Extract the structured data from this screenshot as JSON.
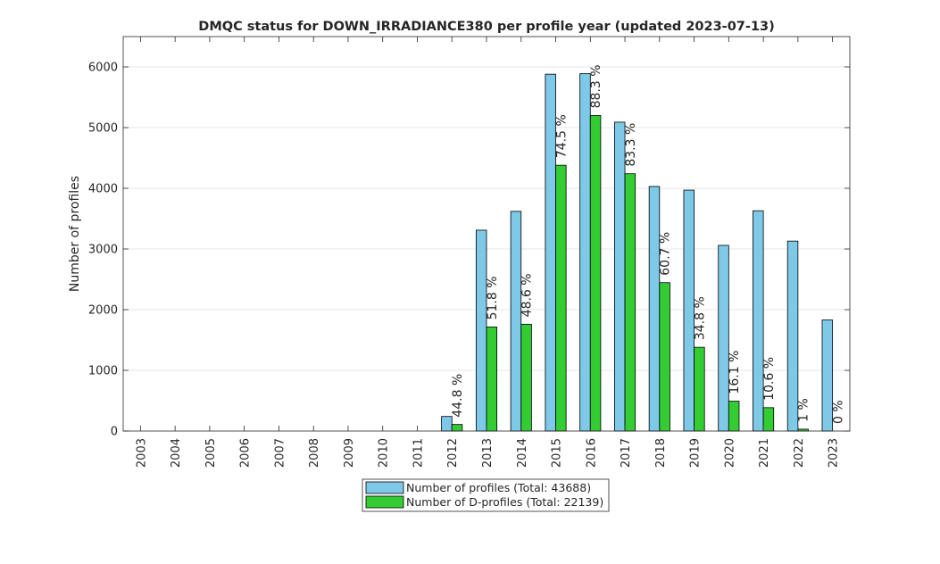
{
  "chart_data": {
    "type": "bar",
    "title": "DMQC status for DOWN_IRRADIANCE380 per profile year (updated 2023-07-13)",
    "xlabel": "",
    "ylabel": "Number of profiles",
    "ylim": [
      0,
      6500
    ],
    "yticks": [
      0,
      1000,
      2000,
      3000,
      4000,
      5000,
      6000
    ],
    "grid": true,
    "legend_position": "bottom-center",
    "categories": [
      "2003",
      "2004",
      "2005",
      "2006",
      "2007",
      "2008",
      "2009",
      "2010",
      "2011",
      "2012",
      "2013",
      "2014",
      "2015",
      "2016",
      "2017",
      "2018",
      "2019",
      "2020",
      "2021",
      "2022",
      "2023"
    ],
    "series": [
      {
        "name": "Number of profiles (Total: 43688)",
        "color": "#7EC8E8",
        "values": [
          0,
          0,
          0,
          0,
          0,
          0,
          0,
          0,
          0,
          240,
          3310,
          3620,
          5880,
          5890,
          5090,
          4030,
          3970,
          3060,
          3630,
          3130,
          1830
        ]
      },
      {
        "name": "Number of D-profiles (Total: 22139)",
        "color": "#33CC33",
        "values": [
          0,
          0,
          0,
          0,
          0,
          0,
          0,
          0,
          0,
          108,
          1715,
          1760,
          4380,
          5200,
          4240,
          2445,
          1380,
          492,
          385,
          31,
          0
        ]
      }
    ],
    "percent_labels": [
      "",
      "",
      "",
      "",
      "",
      "",
      "",
      "",
      "",
      "44.8 %",
      "51.8 %",
      "48.6 %",
      "74.5 %",
      "88.3 %",
      "83.3 %",
      "60.7 %",
      "34.8 %",
      "16.1 %",
      "10.6 %",
      "1 %",
      "0 %"
    ]
  }
}
